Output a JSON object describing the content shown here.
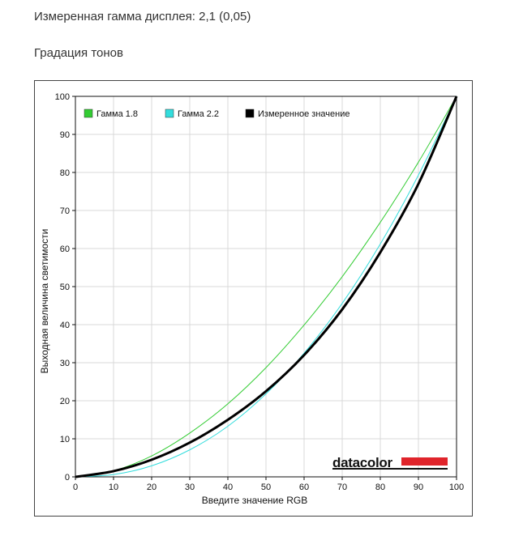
{
  "header": {
    "measured_gamma": "Измеренная гамма дисплея: 2,1 (0,05)",
    "section_title": "Градация тонов"
  },
  "chart_data": {
    "type": "line",
    "xlabel": "Введите значение RGB",
    "ylabel": "Выходная величина светимости",
    "xlim": [
      0,
      100
    ],
    "ylim": [
      0,
      100
    ],
    "xticks": [
      "0",
      "10",
      "20",
      "30",
      "40",
      "50",
      "60",
      "70",
      "80",
      "90",
      "100"
    ],
    "yticks": [
      "0",
      "10",
      "20",
      "30",
      "40",
      "50",
      "60",
      "70",
      "80",
      "90",
      "100"
    ],
    "grid": true,
    "legend_position": "top-left",
    "x": [
      0,
      10,
      20,
      30,
      40,
      50,
      60,
      70,
      80,
      90,
      100
    ],
    "series": [
      {
        "name": "Гамма 1.8",
        "color": "#33cc33",
        "width": 1,
        "values": [
          0,
          1.6,
          5.5,
          11.5,
          19.2,
          28.7,
          39.9,
          52.6,
          66.9,
          82.7,
          100
        ]
      },
      {
        "name": "Гамма 2.2",
        "color": "#33dddd",
        "width": 1,
        "values": [
          0,
          0.6,
          2.9,
          7.1,
          13.3,
          21.8,
          32.5,
          45.6,
          61.2,
          79.3,
          100
        ]
      },
      {
        "name": "Измеренное значение",
        "color": "#000000",
        "width": 3,
        "values": [
          0,
          1.5,
          4.5,
          9.0,
          15.0,
          22.5,
          32.0,
          44.0,
          59.0,
          77.0,
          100
        ]
      }
    ]
  },
  "logo": {
    "text": "datacolor",
    "bar_color": "#e0242b"
  }
}
